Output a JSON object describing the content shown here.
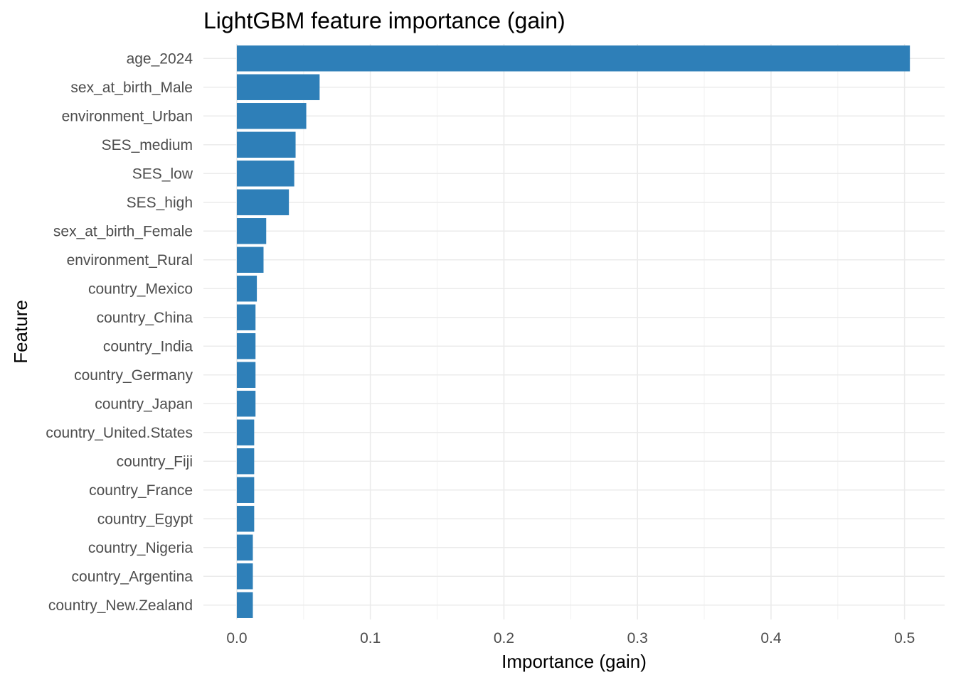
{
  "chart_data": {
    "type": "bar",
    "orientation": "horizontal",
    "title": "LightGBM feature importance (gain)",
    "xlabel": "Importance (gain)",
    "ylabel": "Feature",
    "xlim": [
      -0.025,
      0.53
    ],
    "xticks": [
      0.0,
      0.1,
      0.2,
      0.3,
      0.4,
      0.5
    ],
    "xtick_labels": [
      "0.0",
      "0.1",
      "0.2",
      "0.3",
      "0.4",
      "0.5"
    ],
    "grid": true,
    "bar_color": "#2e7fb8",
    "categories": [
      "age_2024",
      "sex_at_birth_Male",
      "environment_Urban",
      "SES_medium",
      "SES_low",
      "SES_high",
      "sex_at_birth_Female",
      "environment_Rural",
      "country_Mexico",
      "country_China",
      "country_India",
      "country_Germany",
      "country_Japan",
      "country_United.States",
      "country_Fiji",
      "country_France",
      "country_Egypt",
      "country_Nigeria",
      "country_Argentina",
      "country_New.Zealand"
    ],
    "values": [
      0.504,
      0.062,
      0.052,
      0.044,
      0.043,
      0.039,
      0.022,
      0.02,
      0.015,
      0.014,
      0.014,
      0.014,
      0.014,
      0.013,
      0.013,
      0.013,
      0.013,
      0.012,
      0.012,
      0.012
    ]
  }
}
